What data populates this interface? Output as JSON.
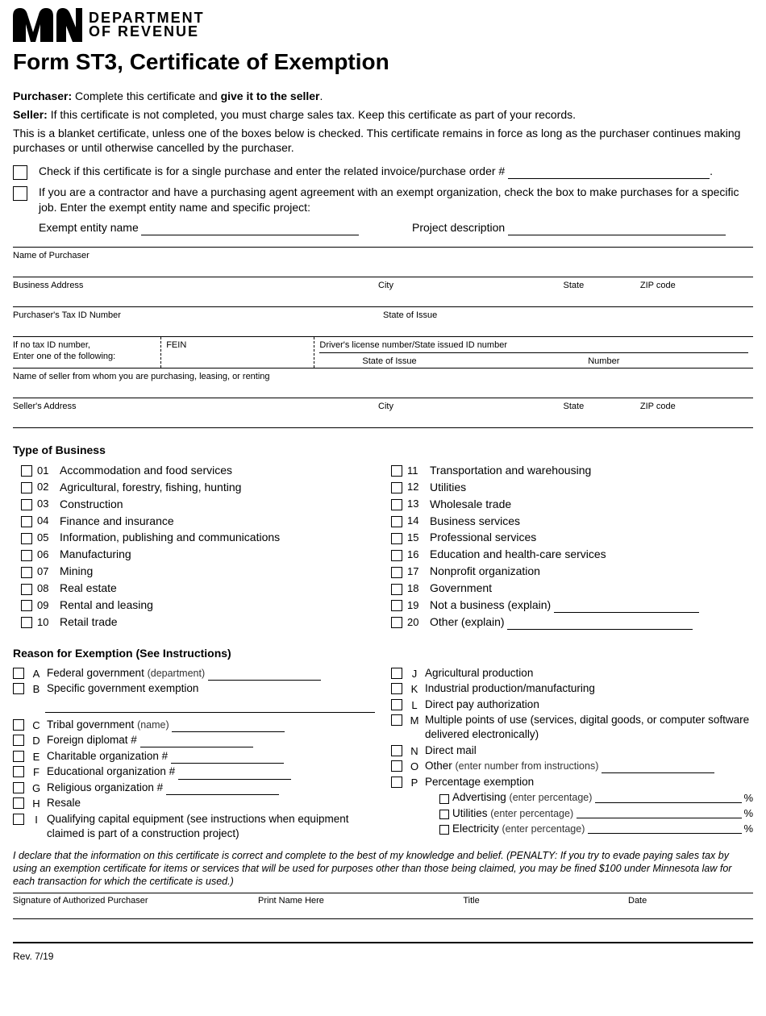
{
  "header": {
    "dept_line1": "DEPARTMENT",
    "dept_line2": "OF REVENUE",
    "title": "Form ST3, Certificate of Exemption"
  },
  "intro": {
    "purchaser_label": "Purchaser:",
    "purchaser_text": " Complete this certificate and ",
    "purchaser_bold": "give it to the seller",
    "seller_label": "Seller:",
    "seller_text": " If this certificate is not completed, you must charge sales tax. Keep this certificate as part of your records.",
    "blanket_text": "This is a blanket certificate, unless one of the boxes below is checked. This certificate remains in force as long as the purchaser continues making purchases or until otherwise cancelled by the purchaser."
  },
  "checks": {
    "c1": "Check if this certificate is for a single purchase and enter the related invoice/purchase order #",
    "c2": "If you are a contractor and have a purchasing agent agreement with an exempt organization, check the box to make purchases for a specific job. Enter the exempt entity name and specific project:",
    "entity_label": "Exempt entity name",
    "project_label": "Project description"
  },
  "fields": {
    "name_purchaser": "Name of Purchaser",
    "business_address": "Business Address",
    "city": "City",
    "state": "State",
    "zip": "ZIP code",
    "tax_id": "Purchaser's Tax ID Number",
    "state_issue": "State of Issue",
    "no_tax_line1": "If no tax ID number,",
    "no_tax_line2": "Enter one of the following:",
    "fein": "FEIN",
    "dl_label": "Driver's license number/State issued ID number",
    "dl_state": "State of Issue",
    "dl_number": "Number",
    "seller_name": "Name of seller from whom you are purchasing, leasing, or renting",
    "seller_address": "Seller's Address"
  },
  "business": {
    "title": "Type of Business",
    "left": [
      {
        "n": "01",
        "t": "Accommodation and food services"
      },
      {
        "n": "02",
        "t": "Agricultural, forestry, fishing, hunting"
      },
      {
        "n": "03",
        "t": "Construction"
      },
      {
        "n": "04",
        "t": "Finance and insurance"
      },
      {
        "n": "05",
        "t": "Information, publishing and communications"
      },
      {
        "n": "06",
        "t": "Manufacturing"
      },
      {
        "n": "07",
        "t": "Mining"
      },
      {
        "n": "08",
        "t": "Real estate"
      },
      {
        "n": "09",
        "t": "Rental and leasing"
      },
      {
        "n": "10",
        "t": "Retail trade"
      }
    ],
    "right": [
      {
        "n": "11",
        "t": "Transportation and warehousing"
      },
      {
        "n": "12",
        "t": "Utilities"
      },
      {
        "n": "13",
        "t": "Wholesale trade"
      },
      {
        "n": "14",
        "t": "Business services"
      },
      {
        "n": "15",
        "t": "Professional services"
      },
      {
        "n": "16",
        "t": "Education and health-care services"
      },
      {
        "n": "17",
        "t": "Nonprofit organization"
      },
      {
        "n": "18",
        "t": "Government"
      },
      {
        "n": "19",
        "t": "Not a business (explain)"
      },
      {
        "n": "20",
        "t": "Other (explain)"
      }
    ]
  },
  "reason": {
    "title": "Reason for Exemption (See Instructions)",
    "left": [
      {
        "l": "A",
        "t": "Federal government",
        "sub": "(department)",
        "line": true
      },
      {
        "l": "B",
        "t": "Specific government exemption",
        "extline": true
      },
      {
        "l": "C",
        "t": "Tribal government",
        "sub": "(name)",
        "line": true
      },
      {
        "l": "D",
        "t": "Foreign diplomat #",
        "line": true
      },
      {
        "l": "E",
        "t": "Charitable organization #",
        "line": true
      },
      {
        "l": "F",
        "t": "Educational organization #",
        "line": true
      },
      {
        "l": "G",
        "t": "Religious organization #",
        "line": true
      },
      {
        "l": "H",
        "t": "Resale"
      },
      {
        "l": "I",
        "t": "Qualifying capital equipment (see instructions when equipment claimed is part of a construction project)"
      }
    ],
    "right": [
      {
        "l": "J",
        "t": "Agricultural production"
      },
      {
        "l": "K",
        "t": "Industrial production/manufacturing"
      },
      {
        "l": "L",
        "t": "Direct pay authorization"
      },
      {
        "l": "M",
        "t": "Multiple points of use (services, digital goods, or computer software delivered electronically)"
      },
      {
        "l": "N",
        "t": "Direct mail"
      },
      {
        "l": "O",
        "t": "Other",
        "sub": "(enter number from instructions)",
        "line": true
      },
      {
        "l": "P",
        "t": "Percentage exemption"
      }
    ],
    "pct": [
      {
        "t": "Advertising",
        "sub": "(enter percentage)"
      },
      {
        "t": "Utilities",
        "sub": "(enter percentage)"
      },
      {
        "t": "Electricity",
        "sub": "(enter percentage)"
      }
    ]
  },
  "declare": "I declare that the information on this certificate is correct and complete to the best of my knowledge and belief. (PENALTY: If you try to evade paying sales tax by using an exemption certificate for items or services that will be used for purposes other than those being claimed, you may be fined $100 under Minnesota law for each transaction for which the certificate is used.)",
  "sig": {
    "s1": "Signature of Authorized Purchaser",
    "s2": "Print Name Here",
    "s3": "Title",
    "s4": "Date"
  },
  "rev": "Rev. 7/19"
}
